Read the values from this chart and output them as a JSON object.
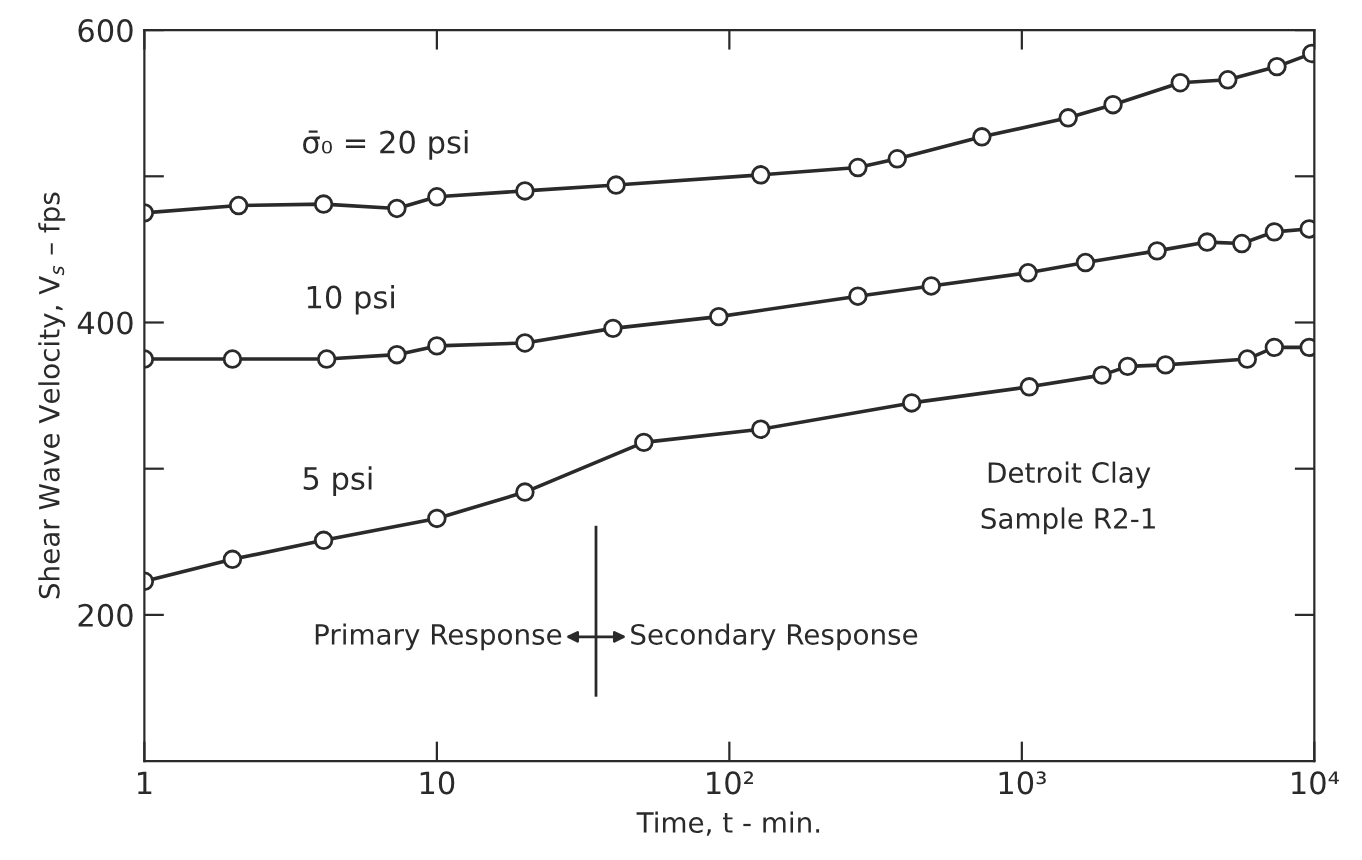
{
  "chart_data": {
    "type": "line",
    "xlabel": "Time, t - min.",
    "ylabel": "Shear Wave Velocity, V$_{s}$ – fps",
    "log": "x",
    "xlim": [
      1,
      10000
    ],
    "xticks": [
      1,
      10,
      {
        "value": 100,
        "label": "10²"
      },
      {
        "value": 1000,
        "label": "10³"
      },
      {
        "value": 10000,
        "label": "10⁴"
      }
    ],
    "ylim": [
      100,
      600
    ],
    "yticks": [
      {
        "value": 200,
        "label": "200"
      },
      {
        "value": 300,
        "label": null
      },
      {
        "value": 400,
        "label": "400"
      },
      {
        "value": 500,
        "label": null
      },
      {
        "value": 600,
        "label": "600"
      }
    ],
    "grid": false,
    "marker": "circle",
    "line_style": "solid",
    "series": [
      {
        "name": "σ̄₀ = 20 psi",
        "color": "#2a2a2a",
        "x": [
          1,
          2.1,
          4.1,
          7.3,
          10,
          20,
          41,
          128,
          275,
          375,
          730,
          1440,
          2050,
          3480,
          5060,
          7450,
          9800
        ],
        "values": [
          475,
          480,
          481,
          478,
          486,
          490,
          494,
          501,
          506,
          512,
          527,
          540,
          549,
          564,
          566,
          575,
          584
        ]
      },
      {
        "name": "10 psi",
        "color": "#2a2a2a",
        "x": [
          1,
          2.0,
          4.2,
          7.3,
          10,
          20,
          40,
          92,
          275,
          490,
          1050,
          1650,
          2900,
          4300,
          5650,
          7300,
          9600
        ],
        "values": [
          375,
          375,
          375,
          378,
          384,
          386,
          396,
          404,
          418,
          425,
          434,
          441,
          449,
          455,
          454,
          462,
          464
        ]
      },
      {
        "name": "5 psi",
        "color": "#2a2a2a",
        "x": [
          1,
          2.0,
          4.1,
          10,
          20,
          51,
          128,
          420,
          1060,
          1880,
          2300,
          3100,
          5900,
          7300,
          9600
        ],
        "values": [
          223,
          238,
          251,
          266,
          284,
          318,
          327,
          345,
          356,
          364,
          370,
          371,
          375,
          383,
          383
        ]
      }
    ],
    "ref_lines": [
      {
        "axis": "x",
        "value": 35,
        "color": "#2a2a2a"
      }
    ],
    "annotations": [
      "Detroit Clay\nSample R2-1",
      "Primary Response",
      "Secondary Response"
    ]
  }
}
